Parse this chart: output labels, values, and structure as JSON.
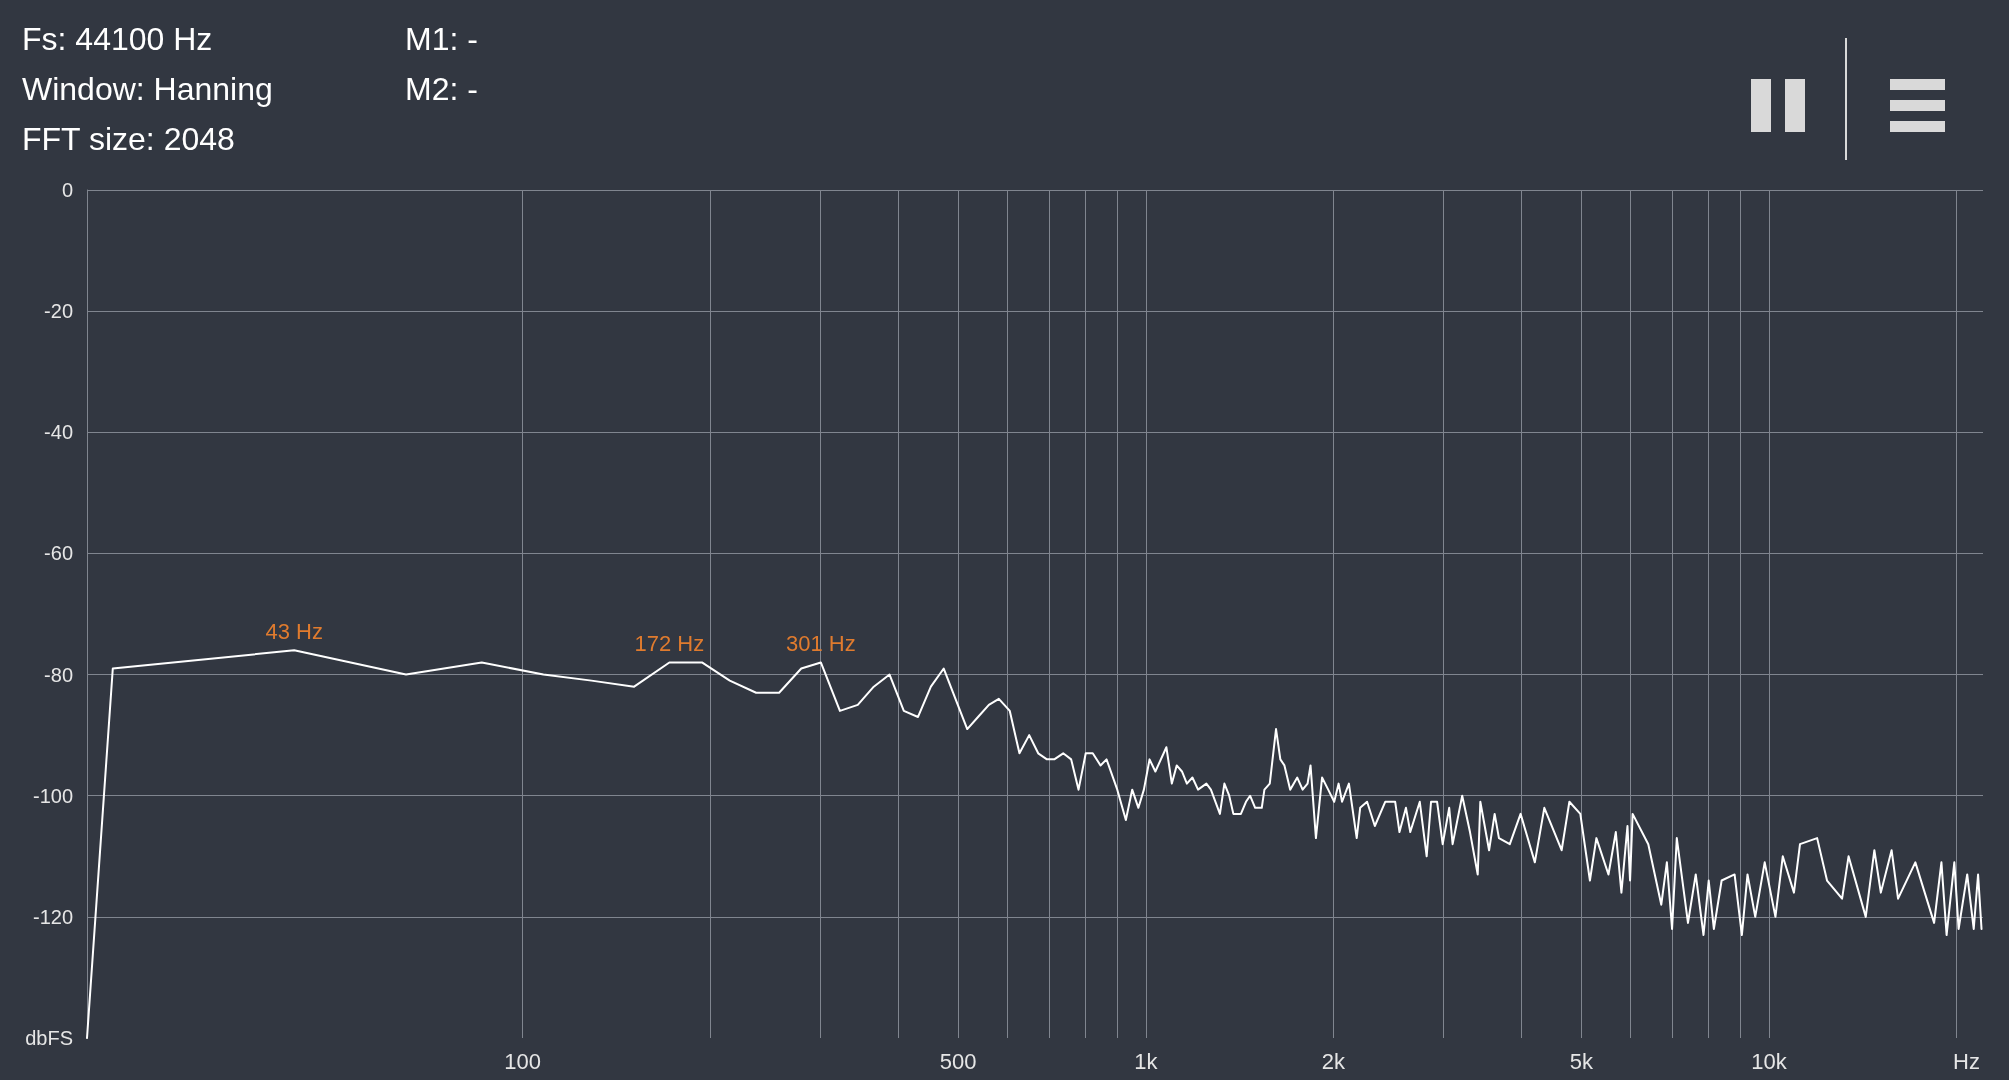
{
  "chart_data": {
    "type": "line",
    "xlabel": "Hz",
    "ylabel": "dbFS",
    "annotations": [
      "Fs: 44100 Hz",
      "Window: Hanning",
      "FFT size: 2048",
      "M1: -",
      "M2: -",
      {
        "text": "43 Hz",
        "x": 43,
        "y": -76
      },
      {
        "text": "172 Hz",
        "x": 172,
        "y": -78
      },
      {
        "text": "301 Hz",
        "x": 301,
        "y": -78
      }
    ],
    "xlim": [
      20,
      22050
    ],
    "log": "x",
    "xticks": [
      {
        "value": 100,
        "label": "100"
      },
      {
        "value": 200,
        "label": null
      },
      {
        "value": 300,
        "label": null
      },
      {
        "value": 400,
        "label": null
      },
      {
        "value": 500,
        "label": "500"
      },
      {
        "value": 600,
        "label": null
      },
      {
        "value": 700,
        "label": null
      },
      {
        "value": 800,
        "label": null
      },
      {
        "value": 900,
        "label": null
      },
      {
        "value": 1000,
        "label": "1k"
      },
      {
        "value": 2000,
        "label": "2k"
      },
      {
        "value": 3000,
        "label": null
      },
      {
        "value": 4000,
        "label": null
      },
      {
        "value": 5000,
        "label": "5k"
      },
      {
        "value": 6000,
        "label": null
      },
      {
        "value": 7000,
        "label": null
      },
      {
        "value": 8000,
        "label": null
      },
      {
        "value": 9000,
        "label": null
      },
      {
        "value": 10000,
        "label": "10k"
      },
      {
        "value": 20000,
        "label": null
      }
    ],
    "ylim": [
      -140,
      0
    ],
    "yticks": [
      0,
      -20,
      -40,
      -60,
      -80,
      -100,
      -120
    ],
    "grid": true,
    "marker": "none",
    "line_style": "solid",
    "series": [
      {
        "color": "#ffffff",
        "x": [
          20,
          22,
          43,
          65,
          86,
          108,
          129,
          151,
          172,
          194,
          215,
          237,
          258,
          280,
          301,
          323,
          345,
          366,
          388,
          409,
          431,
          452,
          474,
          495,
          517,
          538,
          560,
          581,
          605,
          627,
          650,
          672,
          694,
          713,
          737,
          759,
          780,
          801,
          822,
          846,
          865,
          900,
          929,
          951,
          973,
          993,
          1014,
          1036,
          1079,
          1101,
          1121,
          1143,
          1164,
          1188,
          1213,
          1251,
          1272,
          1315,
          1337,
          1361,
          1382,
          1421,
          1448,
          1470,
          1498,
          1535,
          1550,
          1581,
          1618,
          1644,
          1669,
          1705,
          1750,
          1785,
          1818,
          1838,
          1875,
          1918,
          1962,
          2006,
          2039,
          2065,
          2118,
          2180,
          2208,
          2265,
          2331,
          2422,
          2513,
          2553,
          2615,
          2657,
          2752,
          2823,
          2869,
          2934,
          2995,
          3068,
          3107,
          3219,
          3313,
          3409,
          3442,
          3555,
          3629,
          3687,
          3838,
          3994,
          4210,
          4360,
          4648,
          4783,
          4980,
          5160,
          5285,
          5526,
          5678,
          5797,
          5928,
          5985,
          6042,
          6402,
          6717,
          6857,
          6990,
          7113,
          7413,
          7629,
          7851,
          8003,
          8157,
          8395,
          8806,
          9047,
          9237,
          9505,
          9843,
          10241,
          10522,
          10966,
          11214,
          11947,
          12392,
          13100,
          13418,
          14297,
          14760,
          15117,
          15730,
          16110,
          17173,
          18405,
          18910,
          19275,
          19833,
          20150,
          20800,
          21306,
          21652,
          21930
        ],
        "values": [
          -140,
          -79,
          -76,
          -80,
          -78,
          -80,
          -81,
          -82,
          -78,
          -78,
          -81,
          -83,
          -83,
          -79,
          -78,
          -86,
          -85,
          -82,
          -80,
          -86,
          -87,
          -82,
          -79,
          -84,
          -89,
          -87,
          -85,
          -84,
          -86,
          -93,
          -90,
          -93,
          -94,
          -94,
          -93,
          -94,
          -99,
          -93,
          -93,
          -95,
          -94,
          -99,
          -104,
          -99,
          -102,
          -99,
          -94,
          -96,
          -92,
          -98,
          -95,
          -96,
          -98,
          -97,
          -99,
          -98,
          -99,
          -103,
          -98,
          -100,
          -103,
          -103,
          -101,
          -100,
          -102,
          -102,
          -99,
          -98,
          -89,
          -94,
          -95,
          -99,
          -97,
          -99,
          -98,
          -95,
          -107,
          -97,
          -99,
          -101,
          -98,
          -101,
          -98,
          -107,
          -102,
          -101,
          -105,
          -101,
          -101,
          -106,
          -102,
          -106,
          -101,
          -110,
          -101,
          -101,
          -108,
          -102,
          -108,
          -100,
          -106,
          -113,
          -101,
          -109,
          -103,
          -107,
          -108,
          -103,
          -111,
          -102,
          -109,
          -101,
          -103,
          -114,
          -107,
          -113,
          -106,
          -116,
          -105,
          -114,
          -103,
          -108,
          -118,
          -111,
          -122,
          -107,
          -121,
          -113,
          -123,
          -114,
          -122,
          -114,
          -113,
          -123,
          -113,
          -120,
          -111,
          -120,
          -110,
          -116,
          -108,
          -107,
          -114,
          -117,
          -110,
          -120,
          -109,
          -116,
          -109,
          -117,
          -111,
          -121,
          -111,
          -123,
          -111,
          -122,
          -113,
          -122,
          -113,
          -122
        ]
      }
    ]
  }
}
